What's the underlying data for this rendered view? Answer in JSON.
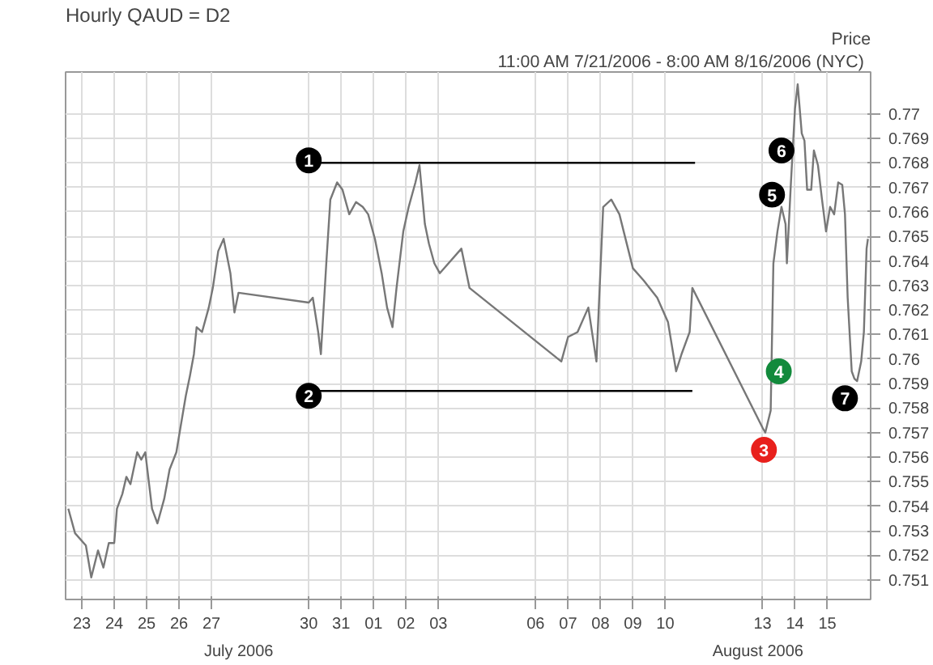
{
  "chart_data": {
    "type": "line",
    "title": "Hourly QAUD = D2",
    "subtitle": "11:00 AM 7/21/2006  - 8:00 AM 8/16/2006 (NYC)",
    "ylabel": "Price",
    "xlim": [
      "2006-07-22T12:00",
      "2006-08-16T08:00"
    ],
    "ylim": [
      0.7502,
      0.7717
    ],
    "xticks": [
      {
        "value": "2006-07-23",
        "label": "23"
      },
      {
        "value": "2006-07-24",
        "label": "24"
      },
      {
        "value": "2006-07-25",
        "label": "25"
      },
      {
        "value": "2006-07-26",
        "label": "26"
      },
      {
        "value": "2006-07-27",
        "label": "27"
      },
      {
        "value": "2006-07-30",
        "label": "30"
      },
      {
        "value": "2006-07-31",
        "label": "31"
      },
      {
        "value": "2006-08-01",
        "label": "01"
      },
      {
        "value": "2006-08-02",
        "label": "02"
      },
      {
        "value": "2006-08-03",
        "label": "03"
      },
      {
        "value": "2006-08-06",
        "label": "06"
      },
      {
        "value": "2006-08-07",
        "label": "07"
      },
      {
        "value": "2006-08-08",
        "label": "08"
      },
      {
        "value": "2006-08-09",
        "label": "09"
      },
      {
        "value": "2006-08-10",
        "label": "10"
      },
      {
        "value": "2006-08-13",
        "label": "13"
      },
      {
        "value": "2006-08-14",
        "label": "14"
      },
      {
        "value": "2006-08-15",
        "label": "15"
      }
    ],
    "yticks": [
      0.751,
      0.752,
      0.753,
      0.754,
      0.755,
      0.756,
      0.757,
      0.758,
      0.759,
      {
        "value": 0.76,
        "label": "0.76"
      },
      0.761,
      0.762,
      0.763,
      0.764,
      0.765,
      0.766,
      0.767,
      0.768,
      0.769,
      {
        "value": 0.77,
        "label": "0.77"
      }
    ],
    "grid": true,
    "line_style": "solid",
    "series": [
      {
        "color": "#777777",
        "x": [
          "2006-07-22T14:00",
          "2006-07-22T19:00",
          "2006-07-23T03:00",
          "2006-07-23T07:00",
          "2006-07-23T12:00",
          "2006-07-23T16:00",
          "2006-07-23T20:00",
          "2006-07-24T00:00",
          "2006-07-24T02:00",
          "2006-07-24T06:00",
          "2006-07-24T09:00",
          "2006-07-24T12:00",
          "2006-07-24T17:00",
          "2006-07-24T20:00",
          "2006-07-24T23:00",
          "2006-07-25T04:00",
          "2006-07-25T08:00",
          "2006-07-25T13:00",
          "2006-07-25T17:00",
          "2006-07-25T22:00",
          "2006-07-26T01:00",
          "2006-07-26T05:00",
          "2006-07-26T08:00",
          "2006-07-26T11:00",
          "2006-07-26T13:00",
          "2006-07-26T17:00",
          "2006-07-26T22:00",
          "2006-07-27T01:00",
          "2006-07-27T05:00",
          "2006-07-27T09:00",
          "2006-07-27T14:00",
          "2006-07-27T17:00",
          "2006-07-27T20:00",
          "2006-07-30T00:00",
          "2006-07-30T03:00",
          "2006-07-30T07:00",
          "2006-07-30T09:00",
          "2006-07-30T13:00",
          "2006-07-30T16:00",
          "2006-07-30T21:00",
          "2006-07-31T01:00",
          "2006-07-31T06:00",
          "2006-07-31T11:00",
          "2006-07-31T16:00",
          "2006-07-31T20:00",
          "2006-08-01T01:00",
          "2006-08-01T06:00",
          "2006-08-01T10:00",
          "2006-08-01T14:00",
          "2006-08-01T17:00",
          "2006-08-01T22:00",
          "2006-08-02T02:00",
          "2006-08-02T07:00",
          "2006-08-02T10:00",
          "2006-08-02T14:00",
          "2006-08-02T17:00",
          "2006-08-02T21:00",
          "2006-08-03T01:00",
          "2006-08-03T17:00",
          "2006-08-03T23:00",
          "2006-08-06T19:00",
          "2006-08-07T00:00",
          "2006-08-07T07:00",
          "2006-08-07T15:00",
          "2006-08-07T21:00",
          "2006-08-08T02:00",
          "2006-08-08T08:00",
          "2006-08-08T14:00",
          "2006-08-09T00:00",
          "2006-08-09T08:00",
          "2006-08-09T18:00",
          "2006-08-10T02:00",
          "2006-08-10T08:00",
          "2006-08-10T12:00",
          "2006-08-10T18:00",
          "2006-08-10T20:00",
          "2006-08-13T00:00",
          "2006-08-13T02:00",
          "2006-08-13T06:00",
          "2006-08-13T08:00",
          "2006-08-13T11:00",
          "2006-08-13T14:00",
          "2006-08-13T17:00",
          "2006-08-13T18:00",
          "2006-08-13T21:00",
          "2006-08-14T00:00",
          "2006-08-14T02:00",
          "2006-08-14T05:00",
          "2006-08-14T07:00",
          "2006-08-14T09:00",
          "2006-08-14T12:00",
          "2006-08-14T14:00",
          "2006-08-14T17:00",
          "2006-08-14T20:00",
          "2006-08-14T23:00",
          "2006-08-15T02:00",
          "2006-08-15T05:00",
          "2006-08-15T08:00",
          "2006-08-15T11:00",
          "2006-08-15T13:00",
          "2006-08-15T15:00",
          "2006-08-15T18:00",
          "2006-08-15T20:00",
          "2006-08-15T22:00",
          "2006-08-16T01:00",
          "2006-08-16T03:00",
          "2006-08-16T05:00",
          "2006-08-16T06:00"
        ],
        "values": [
          0.7539,
          0.7529,
          0.7524,
          0.7511,
          0.7522,
          0.7515,
          0.7525,
          0.7525,
          0.7539,
          0.7545,
          0.7552,
          0.7549,
          0.7562,
          0.7559,
          0.7562,
          0.7539,
          0.7533,
          0.7543,
          0.7555,
          0.7562,
          0.7572,
          0.7585,
          0.7593,
          0.7602,
          0.7613,
          0.7611,
          0.7621,
          0.7629,
          0.7644,
          0.7649,
          0.7635,
          0.7619,
          0.7627,
          0.7623,
          0.7625,
          0.7611,
          0.7602,
          0.7639,
          0.7665,
          0.7672,
          0.7669,
          0.7659,
          0.7664,
          0.7662,
          0.7659,
          0.7649,
          0.7635,
          0.7621,
          0.7613,
          0.7629,
          0.7652,
          0.7662,
          0.7672,
          0.7679,
          0.7655,
          0.7647,
          0.7639,
          0.7635,
          0.7645,
          0.7629,
          0.7599,
          0.7609,
          0.7611,
          0.7621,
          0.7599,
          0.7662,
          0.7665,
          0.7659,
          0.7637,
          0.7632,
          0.7625,
          0.7615,
          0.7595,
          0.7602,
          0.7611,
          0.7629,
          0.7572,
          0.757,
          0.7579,
          0.7639,
          0.7652,
          0.7662,
          0.7655,
          0.7639,
          0.7672,
          0.7702,
          0.7712,
          0.7692,
          0.7689,
          0.7669,
          0.7669,
          0.7685,
          0.7679,
          0.7665,
          0.7652,
          0.7662,
          0.7659,
          0.7672,
          0.7671,
          0.7659,
          0.7625,
          0.7595,
          0.7592,
          0.7591,
          0.7599,
          0.7611,
          0.7645,
          0.7649
        ]
      },
      {
        "color": "#000000",
        "x": [
          "2006-07-30T07:00",
          "2006-08-10T22:00"
        ],
        "values": [
          0.768,
          0.768
        ]
      },
      {
        "color": "#000000",
        "x": [
          "2006-07-30T07:00",
          "2006-08-10T20:00"
        ],
        "values": [
          0.7587,
          0.7587
        ]
      }
    ],
    "annotations": [
      "July 2006",
      "August 2006",
      {
        "text": "1",
        "x": "2006-07-30T00:00",
        "y": 0.7681
      },
      {
        "text": "2",
        "x": "2006-07-30T00:00",
        "y": 0.7585
      },
      {
        "text": "3",
        "x": "2006-08-13T01:00",
        "y": 0.7563
      },
      {
        "text": "4",
        "x": "2006-08-13T12:00",
        "y": 0.7595
      },
      {
        "text": "5",
        "x": "2006-08-13T07:00",
        "y": 0.7667
      },
      {
        "text": "6",
        "x": "2006-08-13T14:00",
        "y": 0.7685
      },
      {
        "text": "7",
        "x": "2006-08-15T13:00",
        "y": 0.7584
      }
    ]
  }
}
